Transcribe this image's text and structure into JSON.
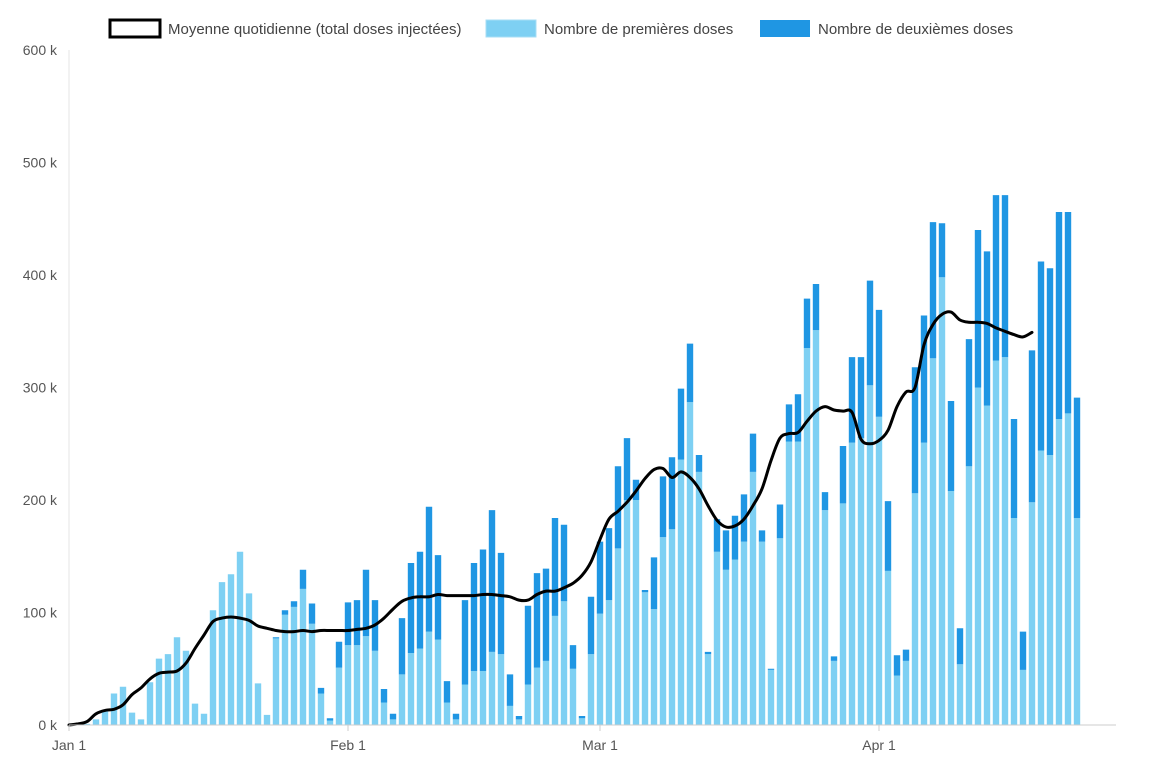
{
  "chart_data": {
    "type": "bar",
    "stacked": true,
    "ylim": [
      0,
      600000
    ],
    "y_ticks": [
      {
        "value": 0,
        "label": "0 k"
      },
      {
        "value": 100000,
        "label": "100 k"
      },
      {
        "value": 200000,
        "label": "200 k"
      },
      {
        "value": 300000,
        "label": "300 k"
      },
      {
        "value": 400000,
        "label": "400 k"
      },
      {
        "value": 500000,
        "label": "500 k"
      },
      {
        "value": 600000,
        "label": "600 k"
      }
    ],
    "x_ticks": [
      {
        "date": "2021-01-01",
        "label": "Jan 1"
      },
      {
        "date": "2021-02-01",
        "label": "Feb 1"
      },
      {
        "date": "2021-03-01",
        "label": "Mar 1"
      },
      {
        "date": "2021-04-01",
        "label": "Apr 1"
      }
    ],
    "x_start": "2021-01-01",
    "grid": false,
    "legend": {
      "position": "top"
    },
    "series": [
      {
        "name": "Nombre de premières doses",
        "kind": "bar",
        "color": "#7ed0f3",
        "values": [
          0,
          500,
          1000,
          5000,
          12000,
          28000,
          34000,
          11000,
          5000,
          38000,
          59000,
          63000,
          78000,
          66000,
          19000,
          10000,
          102000,
          127000,
          134000,
          154000,
          117000,
          37000,
          9000,
          77000,
          98000,
          105000,
          121000,
          90000,
          28000,
          4000,
          51000,
          71000,
          71000,
          79000,
          66000,
          20000,
          5000,
          45000,
          64000,
          68000,
          83000,
          76000,
          20000,
          5000,
          36000,
          48000,
          48000,
          65000,
          63000,
          17000,
          5000,
          36000,
          51000,
          57000,
          97000,
          110000,
          50000,
          6000,
          63000,
          99000,
          111000,
          157000,
          200000,
          200000,
          118000,
          103000,
          167000,
          174000,
          236000,
          287000,
          225000,
          63000,
          154000,
          138000,
          147000,
          163000,
          225000,
          163000,
          49000,
          166000,
          252000,
          252000,
          335000,
          351000,
          191000,
          57000,
          197000,
          251000,
          255000,
          302000,
          274000,
          137000,
          44000,
          57000,
          206000,
          251000,
          326000,
          398000,
          208000,
          54000,
          230000,
          300000,
          284000,
          324000,
          327000,
          184000,
          49000,
          198000,
          244000,
          240000,
          272000,
          277000,
          184000
        ]
      },
      {
        "name": "Nombre de deuxièmes doses",
        "kind": "bar",
        "color": "#1f96e3",
        "values": [
          0,
          0,
          0,
          0,
          0,
          0,
          0,
          0,
          0,
          0,
          0,
          0,
          0,
          0,
          0,
          0,
          0,
          0,
          0,
          0,
          0,
          0,
          0,
          1000,
          4000,
          5000,
          17000,
          18000,
          5000,
          2000,
          23000,
          38000,
          40000,
          59000,
          45000,
          12000,
          5000,
          50000,
          80000,
          86000,
          111000,
          75000,
          19000,
          5000,
          75000,
          96000,
          108000,
          126000,
          90000,
          28000,
          3000,
          70000,
          84000,
          82000,
          87000,
          68000,
          21000,
          2000,
          51000,
          64000,
          64000,
          73000,
          55000,
          18000,
          2000,
          46000,
          54000,
          64000,
          63000,
          52000,
          15000,
          2000,
          29000,
          35000,
          39000,
          42000,
          34000,
          10000,
          1000,
          30000,
          33000,
          42000,
          44000,
          41000,
          16000,
          4000,
          51000,
          76000,
          72000,
          93000,
          95000,
          62000,
          18000,
          10000,
          112000,
          113000,
          121000,
          48000,
          80000,
          32000,
          113000,
          140000,
          137000,
          147000,
          144000,
          88000,
          34000,
          135000,
          168000,
          166000,
          184000,
          179000,
          107000
        ]
      },
      {
        "name": "Moyenne quotidienne (total doses injectées)",
        "kind": "line",
        "color": "#000000",
        "values": [
          0,
          1000,
          3000,
          10000,
          13000,
          14000,
          18000,
          27000,
          33000,
          41000,
          46000,
          47000,
          48000,
          55000,
          68000,
          80000,
          92000,
          95000,
          96000,
          95000,
          93000,
          88000,
          86000,
          84000,
          83000,
          83000,
          84000,
          83000,
          84000,
          84000,
          84000,
          84000,
          85000,
          86000,
          89000,
          95000,
          103000,
          110000,
          113000,
          114000,
          114000,
          116000,
          115000,
          115000,
          115000,
          115000,
          116000,
          116000,
          115000,
          114000,
          111000,
          111000,
          116000,
          119000,
          119000,
          122000,
          126000,
          133000,
          145000,
          165000,
          183000,
          190000,
          198000,
          208000,
          219000,
          227000,
          228000,
          220000,
          225000,
          220000,
          210000,
          195000,
          182000,
          176000,
          177000,
          183000,
          195000,
          210000,
          235000,
          255000,
          259000,
          260000,
          270000,
          279000,
          283000,
          280000,
          279000,
          278000,
          254000,
          250000,
          253000,
          262000,
          283000,
          296000,
          300000,
          338000,
          356000,
          365000,
          367000,
          360000,
          358000,
          358000,
          357000,
          353000,
          350000,
          347000,
          345000,
          349000
        ]
      }
    ]
  }
}
